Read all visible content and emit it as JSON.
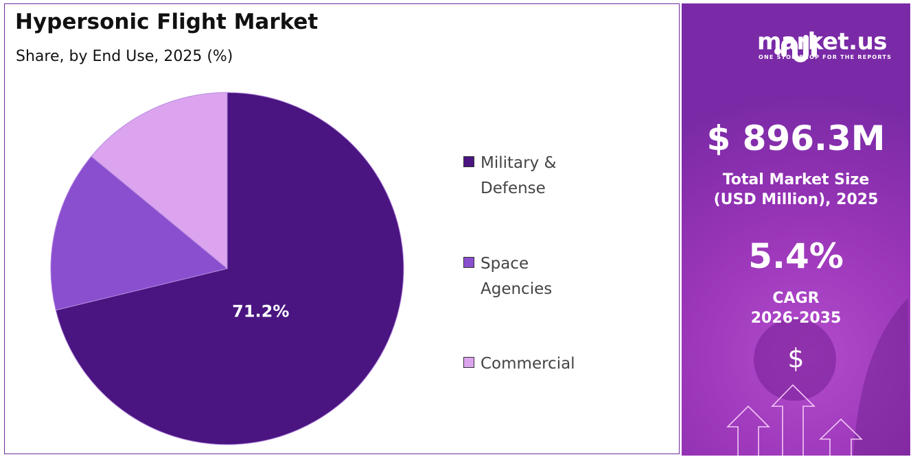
{
  "chart_data": {
    "type": "pie",
    "title": "Hypersonic Flight Market",
    "subtitle": "Share, by End Use, 2025 (%)",
    "categories": [
      "Military & Defense",
      "Space Agencies",
      "Commercial"
    ],
    "values": [
      71.2,
      14.8,
      14.0
    ],
    "data_labels": [
      "71.2%",
      "",
      ""
    ],
    "colors": [
      "#4a1580",
      "#8a4fcf",
      "#dca4ee"
    ],
    "legend_position": "right",
    "start_angle": "top, clockwise"
  },
  "legend": {
    "items": [
      {
        "label_line1": "Military &",
        "label_line2": "Defense"
      },
      {
        "label_line1": "Space Agencies",
        "label_line2": ""
      },
      {
        "label_line1": "Commercial",
        "label_line2": ""
      }
    ]
  },
  "sidebar": {
    "logo_text": "market.us",
    "logo_tagline": "ONE STOP SHOP FOR THE REPORTS",
    "market_size": "$ 896.3M",
    "market_size_label_1": "Total Market Size",
    "market_size_label_2": "(USD Million), 2025",
    "cagr": "5.4%",
    "cagr_label_1": "CAGR",
    "cagr_label_2": "2026-2035",
    "dollar_symbol": "$"
  }
}
